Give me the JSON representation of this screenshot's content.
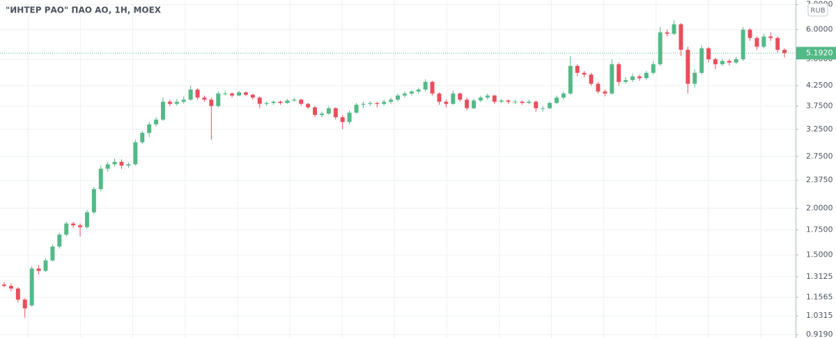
{
  "chart_data": {
    "type": "candlestick",
    "title": "\"ИНТЕР РАО\" ПАО АО, 1H, MOEX",
    "currency": "RUB",
    "log": true,
    "grid": true,
    "up_color": "#53b987",
    "down_color": "#eb4d5c",
    "ylim": [
      0.9,
      7.2
    ],
    "yticks": [
      {
        "value": 0.919,
        "label": "0.9190"
      },
      {
        "value": 1.0315,
        "label": "1.0315"
      },
      {
        "value": 1.1565,
        "label": "1.1565"
      },
      {
        "value": 1.3125,
        "label": "1.3125"
      },
      {
        "value": 1.5,
        "label": "1.5000"
      },
      {
        "value": 1.75,
        "label": "1.7500"
      },
      {
        "value": 2,
        "label": "2.0000"
      },
      {
        "value": 2.375,
        "label": "2.3750"
      },
      {
        "value": 2.75,
        "label": "2.7500"
      },
      {
        "value": 3.25,
        "label": "3.2500"
      },
      {
        "value": 3.75,
        "label": "3.7500"
      },
      {
        "value": 4.25,
        "label": "4.2500"
      },
      {
        "value": 5,
        "label": "5.0000"
      },
      {
        "value": 6,
        "label": "6.0000"
      },
      {
        "value": 7,
        "label": "7.0000"
      }
    ],
    "last_price": {
      "value": 5.192,
      "label": "5.1920"
    },
    "ohlc": [
      [
        1.25,
        1.27,
        1.23,
        1.24
      ],
      [
        1.24,
        1.26,
        1.2,
        1.22
      ],
      [
        1.22,
        1.23,
        1.12,
        1.14
      ],
      [
        1.14,
        1.15,
        1.02,
        1.08
      ],
      [
        1.1,
        1.4,
        1.09,
        1.38
      ],
      [
        1.38,
        1.41,
        1.33,
        1.36
      ],
      [
        1.36,
        1.47,
        1.35,
        1.45
      ],
      [
        1.45,
        1.6,
        1.44,
        1.58
      ],
      [
        1.58,
        1.72,
        1.56,
        1.7
      ],
      [
        1.7,
        1.84,
        1.68,
        1.82
      ],
      [
        1.82,
        1.84,
        1.77,
        1.8
      ],
      [
        1.8,
        1.82,
        1.68,
        1.78
      ],
      [
        1.78,
        1.98,
        1.76,
        1.95
      ],
      [
        1.95,
        2.28,
        1.93,
        2.25
      ],
      [
        2.25,
        2.6,
        2.22,
        2.55
      ],
      [
        2.55,
        2.66,
        2.5,
        2.62
      ],
      [
        2.62,
        2.72,
        2.58,
        2.66
      ],
      [
        2.66,
        2.7,
        2.55,
        2.6
      ],
      [
        2.6,
        2.65,
        2.56,
        2.62
      ],
      [
        2.62,
        3.05,
        2.6,
        3.0
      ],
      [
        3.0,
        3.22,
        2.97,
        3.18
      ],
      [
        3.18,
        3.4,
        3.1,
        3.35
      ],
      [
        3.35,
        3.5,
        3.3,
        3.45
      ],
      [
        3.45,
        3.95,
        3.42,
        3.85
      ],
      [
        3.85,
        3.9,
        3.75,
        3.8
      ],
      [
        3.8,
        3.92,
        3.76,
        3.85
      ],
      [
        3.85,
        3.98,
        3.8,
        3.9
      ],
      [
        3.9,
        4.25,
        3.88,
        4.15
      ],
      [
        4.15,
        4.18,
        3.9,
        3.95
      ],
      [
        3.95,
        4.0,
        3.85,
        3.9
      ],
      [
        3.9,
        3.95,
        3.05,
        3.75
      ],
      [
        3.75,
        4.1,
        3.72,
        4.05
      ],
      [
        4.05,
        4.12,
        4.0,
        4.05
      ],
      [
        4.05,
        4.08,
        3.95,
        4.0
      ],
      [
        4.0,
        4.12,
        3.98,
        4.08
      ],
      [
        4.08,
        4.1,
        3.98,
        4.02
      ],
      [
        4.02,
        4.05,
        3.9,
        3.95
      ],
      [
        3.95,
        3.98,
        3.7,
        3.8
      ],
      [
        3.8,
        3.86,
        3.76,
        3.82
      ],
      [
        3.82,
        3.88,
        3.78,
        3.85
      ],
      [
        3.85,
        3.88,
        3.78,
        3.82
      ],
      [
        3.82,
        3.92,
        3.8,
        3.88
      ],
      [
        3.88,
        3.95,
        3.85,
        3.9
      ],
      [
        3.9,
        3.92,
        3.76,
        3.8
      ],
      [
        3.8,
        3.82,
        3.68,
        3.72
      ],
      [
        3.72,
        3.75,
        3.5,
        3.55
      ],
      [
        3.55,
        3.62,
        3.5,
        3.58
      ],
      [
        3.58,
        3.75,
        3.55,
        3.7
      ],
      [
        3.7,
        3.72,
        3.45,
        3.5
      ],
      [
        3.5,
        3.55,
        3.25,
        3.4
      ],
      [
        3.4,
        3.65,
        3.35,
        3.6
      ],
      [
        3.6,
        3.82,
        3.58,
        3.78
      ],
      [
        3.78,
        3.85,
        3.7,
        3.8
      ],
      [
        3.8,
        3.86,
        3.75,
        3.82
      ],
      [
        3.82,
        3.85,
        3.72,
        3.8
      ],
      [
        3.8,
        3.9,
        3.76,
        3.85
      ],
      [
        3.85,
        3.95,
        3.8,
        3.9
      ],
      [
        3.9,
        4.05,
        3.86,
        4.0
      ],
      [
        4.0,
        4.1,
        3.95,
        4.05
      ],
      [
        4.05,
        4.14,
        4.0,
        4.1
      ],
      [
        4.1,
        4.2,
        4.05,
        4.15
      ],
      [
        4.15,
        4.42,
        4.1,
        4.35
      ],
      [
        4.35,
        4.38,
        4.0,
        4.05
      ],
      [
        4.05,
        4.08,
        3.78,
        3.85
      ],
      [
        3.85,
        3.9,
        3.72,
        3.8
      ],
      [
        3.8,
        4.12,
        3.78,
        4.05
      ],
      [
        4.05,
        4.08,
        3.85,
        3.9
      ],
      [
        3.9,
        3.95,
        3.65,
        3.7
      ],
      [
        3.7,
        3.92,
        3.68,
        3.88
      ],
      [
        3.88,
        4.0,
        3.84,
        3.95
      ],
      [
        3.95,
        4.05,
        3.9,
        4.0
      ],
      [
        4.0,
        4.02,
        3.8,
        3.85
      ],
      [
        3.85,
        3.92,
        3.82,
        3.88
      ],
      [
        3.88,
        3.9,
        3.8,
        3.85
      ],
      [
        3.85,
        3.9,
        3.8,
        3.85
      ],
      [
        3.85,
        3.88,
        3.78,
        3.82
      ],
      [
        3.82,
        3.9,
        3.8,
        3.85
      ],
      [
        3.85,
        3.88,
        3.62,
        3.7
      ],
      [
        3.7,
        3.75,
        3.62,
        3.7
      ],
      [
        3.7,
        3.86,
        3.68,
        3.82
      ],
      [
        3.82,
        4.0,
        3.8,
        3.95
      ],
      [
        3.95,
        4.1,
        3.9,
        4.05
      ],
      [
        4.05,
        5.1,
        4.02,
        4.8
      ],
      [
        4.8,
        4.85,
        4.5,
        4.6
      ],
      [
        4.6,
        4.65,
        4.48,
        4.55
      ],
      [
        4.55,
        4.6,
        4.25,
        4.3
      ],
      [
        4.3,
        4.35,
        4.05,
        4.1
      ],
      [
        4.1,
        4.15,
        3.98,
        4.05
      ],
      [
        4.05,
        5.0,
        4.02,
        4.85
      ],
      [
        4.85,
        4.9,
        4.25,
        4.35
      ],
      [
        4.35,
        4.48,
        4.3,
        4.4
      ],
      [
        4.4,
        4.58,
        4.35,
        4.5
      ],
      [
        4.5,
        4.55,
        4.38,
        4.45
      ],
      [
        4.45,
        4.65,
        4.4,
        4.6
      ],
      [
        4.6,
        4.95,
        4.55,
        4.85
      ],
      [
        4.85,
        6.1,
        4.8,
        5.9
      ],
      [
        5.9,
        6.0,
        5.75,
        5.85
      ],
      [
        5.85,
        6.35,
        5.8,
        6.2
      ],
      [
        6.2,
        6.25,
        5.1,
        5.3
      ],
      [
        5.3,
        5.4,
        4.05,
        4.3
      ],
      [
        4.3,
        4.7,
        4.2,
        4.6
      ],
      [
        4.6,
        5.45,
        4.55,
        5.35
      ],
      [
        5.35,
        5.4,
        4.9,
        5.0
      ],
      [
        5.0,
        5.05,
        4.7,
        4.85
      ],
      [
        4.85,
        5.02,
        4.8,
        4.95
      ],
      [
        4.95,
        5.0,
        4.82,
        4.9
      ],
      [
        4.9,
        5.08,
        4.85,
        5.0
      ],
      [
        5.0,
        6.1,
        4.95,
        6.0
      ],
      [
        6.0,
        6.05,
        5.6,
        5.7
      ],
      [
        5.7,
        5.75,
        5.3,
        5.4
      ],
      [
        5.4,
        5.85,
        5.35,
        5.75
      ],
      [
        5.75,
        5.9,
        5.6,
        5.7
      ],
      [
        5.7,
        5.75,
        5.2,
        5.3
      ],
      [
        5.3,
        5.35,
        5.05,
        5.19
      ]
    ]
  }
}
